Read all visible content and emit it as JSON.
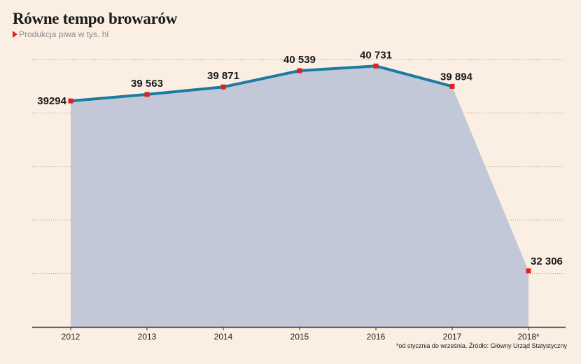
{
  "header": {
    "title": "Równe tempo browarów",
    "subtitle": "Produkcja piwa w tys. hl",
    "subtitle_icon": "red-triangle-icon"
  },
  "footer": {
    "source": "*od stycznia do września. Źródło: Główny Urząd Statystyczny"
  },
  "colors": {
    "background": "#fbefe3",
    "area_fill": "#c2c8d7",
    "line": "#1b7ba1",
    "marker": "#e02020",
    "grid": "#9a9a9a",
    "axis": "#333333"
  },
  "chart_data": {
    "type": "area",
    "categories": [
      "2012",
      "2013",
      "2014",
      "2015",
      "2016",
      "2017",
      "2018*"
    ],
    "values": [
      39294,
      39563,
      39871,
      40539,
      40731,
      39894,
      32306
    ],
    "data_labels": [
      "39294",
      "39 563",
      "39 871",
      "40 539",
      "40 731",
      "39 894",
      "32 306"
    ],
    "ylim": [
      30000,
      41000
    ],
    "grid": true,
    "title": "Równe tempo browarów",
    "subtitle": "Produkcja piwa w tys. hl",
    "xlabel": "",
    "ylabel": ""
  }
}
